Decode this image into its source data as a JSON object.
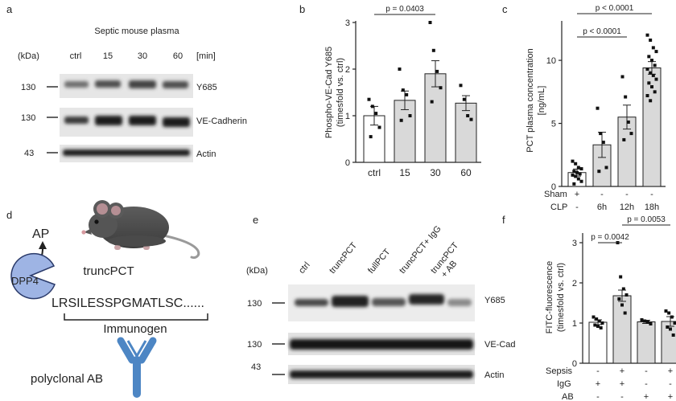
{
  "panels": {
    "a": {
      "letter": "a",
      "kda_label": "(kDa)",
      "header": "Septic mouse plasma",
      "lanes": [
        "ctrl",
        "15",
        "30",
        "60"
      ],
      "unit": "[min]",
      "mw": [
        "130",
        "130",
        "43"
      ],
      "bands": [
        "Y685",
        "VE-Cadherin",
        "Actin"
      ]
    },
    "d": {
      "letter": "d",
      "ap": "AP",
      "dpp4": "DPP4",
      "trunc": "truncPCT",
      "sequence": "LRSILESSPGMATLSC......",
      "immunogen": "Immunogen",
      "antibody": "polyclonal AB"
    },
    "e": {
      "letter": "e",
      "kda_label": "(kDa)",
      "lanes": [
        "ctrl",
        "truncPCT",
        "fullPCT",
        "truncPCT+ IgG",
        "truncPCT",
        "+ AB"
      ],
      "mw": [
        "130",
        "130",
        "43"
      ],
      "bands": [
        "Y685",
        "VE-Cad",
        "Actin"
      ]
    },
    "c": {
      "sham_label": "Sham",
      "clp_label": "CLP",
      "sham_marks": [
        "+",
        "-",
        "-",
        "-"
      ],
      "clp_marks": [
        "-",
        "6h",
        "12h",
        "18h"
      ]
    },
    "f": {
      "sepsis_label": "Sepsis",
      "igg_label": "IgG",
      "ab_label": "AB",
      "sepsis_marks": [
        "-",
        "+",
        "-",
        "+"
      ],
      "igg_marks": [
        "+",
        "+",
        "-",
        "-"
      ],
      "ab_marks": [
        "-",
        "-",
        "+",
        "+"
      ]
    }
  },
  "chart_data": [
    {
      "panel": "b",
      "type": "bar",
      "categories": [
        "ctrl",
        "15",
        "30",
        "60"
      ],
      "values": [
        1.0,
        1.33,
        1.9,
        1.27
      ],
      "errors": [
        0.2,
        0.2,
        0.28,
        0.16
      ],
      "points": [
        [
          1.35,
          1.2,
          1.05,
          0.75,
          0.55
        ],
        [
          2.0,
          1.55,
          1.45,
          1.0,
          0.9
        ],
        [
          3.0,
          2.4,
          1.95,
          1.6,
          1.3
        ],
        [
          1.65,
          1.35,
          1.0,
          0.92
        ]
      ],
      "bar_colors": [
        "#ffffff",
        "#d9d9d9",
        "#d9d9d9",
        "#d9d9d9"
      ],
      "ylabel_lines": [
        "Phospho-VE-Cad Y685",
        "(timesfold vs. ctrl)"
      ],
      "ylim": [
        0,
        3
      ],
      "yticks": [
        0,
        1,
        2,
        3
      ],
      "annotations": [
        {
          "from": 0,
          "to": 2,
          "text": "p = 0.0403"
        }
      ]
    },
    {
      "panel": "c",
      "type": "bar",
      "categories": [
        "Sham",
        "6h",
        "12h",
        "18h"
      ],
      "values": [
        1.1,
        3.3,
        5.5,
        9.4
      ],
      "errors": [
        0.28,
        1.0,
        0.95,
        0.5
      ],
      "points": [
        [
          2.0,
          1.8,
          1.5,
          1.4,
          1.2,
          1.1,
          1.0,
          0.9,
          0.8,
          0.6,
          0.4,
          0.2
        ],
        [
          6.2,
          4.2,
          3.5,
          1.5,
          1.2
        ],
        [
          8.7,
          7.1,
          5.1,
          4.2,
          3.7
        ],
        [
          12.0,
          11.6,
          11.0,
          10.7,
          10.3,
          10.0,
          9.6,
          9.3,
          9.0,
          8.8,
          8.5,
          8.2,
          7.9,
          7.5,
          7.2,
          6.8
        ]
      ],
      "bar_colors": [
        "#ffffff",
        "#d9d9d9",
        "#d9d9d9",
        "#d9d9d9"
      ],
      "ylabel_lines": [
        "PCT plasma concentration",
        "[ng/mL]"
      ],
      "ylim": [
        0,
        13
      ],
      "yticks": [
        0,
        5,
        10
      ],
      "annotations": [
        {
          "from": 0,
          "to": 2,
          "text": "p < 0.0001",
          "level": 0
        },
        {
          "from": 0,
          "to": 3,
          "text": "p < 0.0001",
          "level": 1
        }
      ]
    },
    {
      "panel": "f",
      "type": "bar",
      "categories": [
        "-/+/-",
        "+/+/-",
        "-/-/+",
        "+/-/+"
      ],
      "values": [
        1.02,
        1.68,
        1.03,
        1.04
      ],
      "errors": [
        0.06,
        0.14,
        0.04,
        0.12
      ],
      "points": [
        [
          1.15,
          1.1,
          1.05,
          1.0,
          0.95,
          0.92,
          0.88
        ],
        [
          3.0,
          2.15,
          1.85,
          1.7,
          1.6,
          1.45,
          1.25
        ],
        [
          1.08,
          1.05,
          1.02,
          0.98
        ],
        [
          1.3,
          1.25,
          1.15,
          1.0,
          0.9,
          0.85,
          0.7
        ]
      ],
      "bar_colors": [
        "#ffffff",
        "#d9d9d9",
        "#d9d9d9",
        "#d9d9d9"
      ],
      "ylabel_lines": [
        "FITC-fluorescence",
        "(timesfold vs. ctrl)"
      ],
      "ylim": [
        0,
        3.2
      ],
      "yticks": [
        0,
        1,
        2,
        3
      ],
      "annotations": [
        {
          "from": 0,
          "to": 1,
          "text": "p = 0.0042",
          "level": 0
        },
        {
          "from": 1,
          "to": 3,
          "text": "p = 0.0053",
          "level": 1
        }
      ]
    }
  ]
}
